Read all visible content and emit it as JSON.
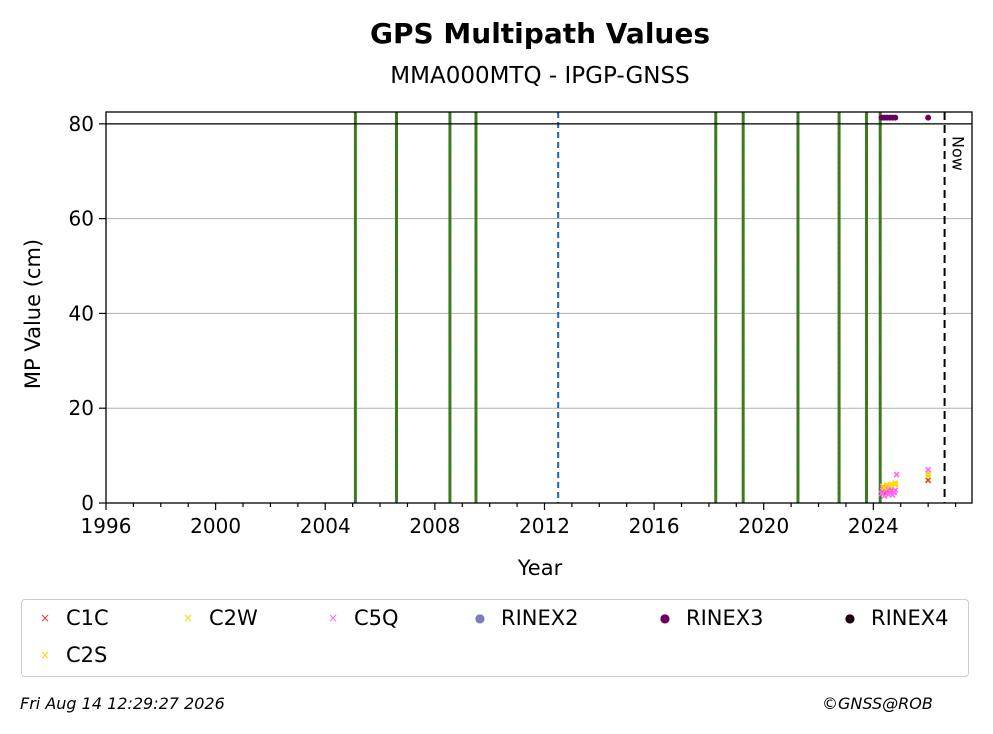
{
  "chart_data": {
    "type": "scatter",
    "title": "GPS Multipath Values",
    "subtitle": "MMA000MTQ - IPGP-GNSS",
    "xlabel": "Year",
    "ylabel": "MP Value (cm)",
    "xlim": [
      1996,
      2027.6
    ],
    "ylim": [
      0,
      82.5
    ],
    "x_ticks": [
      "1996",
      "2000",
      "2004",
      "2008",
      "2012",
      "2016",
      "2020",
      "2024"
    ],
    "y_ticks": [
      "0",
      "20",
      "40",
      "60",
      "80"
    ],
    "grid": "horizontal",
    "reference_line_y": 80,
    "now_marker": {
      "x": 2026.6,
      "label": "Now"
    },
    "event_lines": [
      {
        "x": 2005.1,
        "style": "green-red"
      },
      {
        "x": 2006.6,
        "style": "green-red"
      },
      {
        "x": 2008.55,
        "style": "green-red"
      },
      {
        "x": 2009.5,
        "style": "green-red"
      },
      {
        "x": 2012.5,
        "style": "blue-dashed"
      },
      {
        "x": 2018.25,
        "style": "green-red"
      },
      {
        "x": 2019.25,
        "style": "green-red"
      },
      {
        "x": 2021.25,
        "style": "green-red"
      },
      {
        "x": 2022.75,
        "style": "green-red"
      },
      {
        "x": 2023.75,
        "style": "green-red"
      },
      {
        "x": 2024.25,
        "style": "green-red"
      }
    ],
    "series": [
      {
        "name": "C1C",
        "color": "#e8402a",
        "marker": "x",
        "points": [
          [
            2024.35,
            2.5
          ],
          [
            2024.45,
            2.2
          ],
          [
            2024.55,
            2.4
          ],
          [
            2024.65,
            2.6
          ],
          [
            2024.75,
            2.3
          ],
          [
            2026.0,
            4.8
          ]
        ]
      },
      {
        "name": "C2W",
        "color": "#ffd700",
        "marker": "x",
        "points": [
          [
            2024.35,
            3.5
          ],
          [
            2024.5,
            3.8
          ],
          [
            2024.65,
            4.0
          ],
          [
            2024.8,
            4.2
          ],
          [
            2026.0,
            6.2
          ]
        ]
      },
      {
        "name": "C5Q",
        "color": "#ff66ff",
        "marker": "x",
        "points": [
          [
            2024.3,
            2.0
          ],
          [
            2024.35,
            3.0
          ],
          [
            2024.4,
            1.5
          ],
          [
            2024.45,
            2.6
          ],
          [
            2024.5,
            3.2
          ],
          [
            2024.55,
            1.8
          ],
          [
            2024.6,
            2.4
          ],
          [
            2024.65,
            2.9
          ],
          [
            2024.7,
            1.7
          ],
          [
            2024.75,
            2.2
          ],
          [
            2024.8,
            2.7
          ],
          [
            2024.85,
            6.0
          ],
          [
            2026.0,
            7.0
          ]
        ]
      },
      {
        "name": "RINEX2",
        "color": "#7b7bbf",
        "marker": "o",
        "points": []
      },
      {
        "name": "RINEX3",
        "color": "#6a0060",
        "marker": "o",
        "points": [
          [
            2024.3,
            81.3
          ],
          [
            2024.4,
            81.3
          ],
          [
            2024.5,
            81.3
          ],
          [
            2024.6,
            81.3
          ],
          [
            2024.7,
            81.3
          ],
          [
            2024.8,
            81.3
          ],
          [
            2026.0,
            81.3
          ]
        ]
      },
      {
        "name": "RINEX4",
        "color": "#1a0010",
        "marker": "o",
        "points": []
      },
      {
        "name": "C2S",
        "color": "#ffd700",
        "marker": "x",
        "points": [
          [
            2024.4,
            3.2
          ],
          [
            2024.6,
            3.6
          ],
          [
            2024.8,
            3.9
          ],
          [
            2026.0,
            5.8
          ]
        ]
      }
    ]
  },
  "legend": [
    {
      "label": "C1C",
      "symbol": "×",
      "color": "#e8402a"
    },
    {
      "label": "C2W",
      "symbol": "×",
      "color": "#ffd700"
    },
    {
      "label": "C5Q",
      "symbol": "×",
      "color": "#ff66ff"
    },
    {
      "label": "RINEX2",
      "symbol": "●",
      "color": "#7b7bbf"
    },
    {
      "label": "RINEX3",
      "symbol": "●",
      "color": "#6a0060"
    },
    {
      "label": "RINEX4",
      "symbol": "●",
      "color": "#1a0010"
    },
    {
      "label": "C2S",
      "symbol": "×",
      "color": "#ffd700"
    }
  ],
  "footer": {
    "timestamp": "Fri Aug 14 12:29:27 2026",
    "copyright": "©GNSS@ROB"
  }
}
